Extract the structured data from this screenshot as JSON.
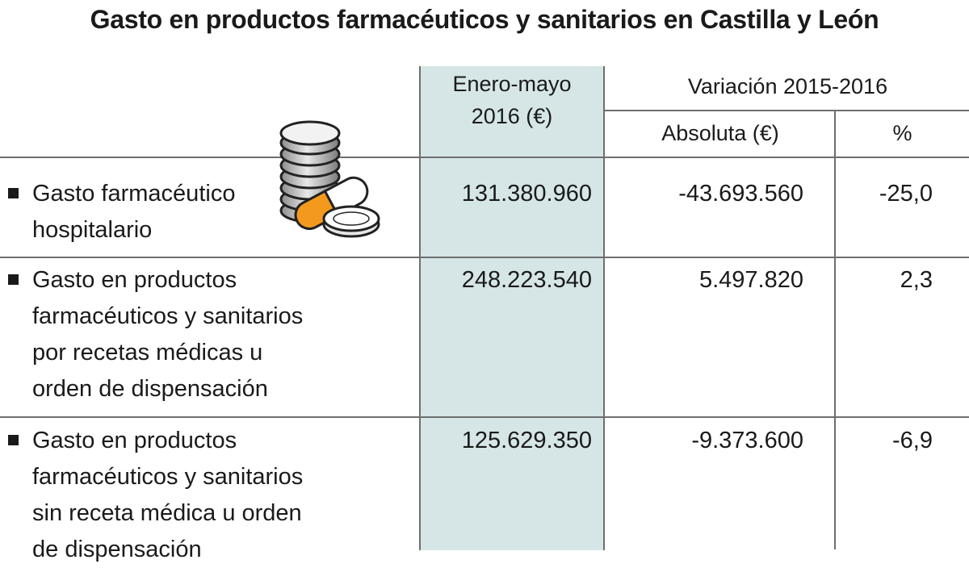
{
  "title": "Gasto en productos farmacéuticos y sanitarios en Castilla y León",
  "columns": {
    "period": [
      "Enero-mayo",
      "2016 (€)"
    ],
    "variation_group": "Variación 2015-2016",
    "absolute": "Absoluta (€)",
    "percent": "%"
  },
  "rows": [
    {
      "label_lines": [
        "Gasto farmacéutico",
        "hospitalario"
      ],
      "value": "131.380.960",
      "absolute": "-43.693.560",
      "percent": "-25,0"
    },
    {
      "label_lines": [
        "Gasto en productos",
        "farmacéuticos y sanitarios",
        "por recetas médicas u",
        "orden de dispensación"
      ],
      "value": "248.223.540",
      "absolute": "5.497.820",
      "percent": "2,3"
    },
    {
      "label_lines": [
        "Gasto en productos",
        "farmacéuticos y sanitarios",
        "sin receta médica u orden",
        "de dispensación"
      ],
      "value": "125.629.350",
      "absolute": "-9.373.600",
      "percent": "-6,9"
    }
  ],
  "icons": {
    "illustration": "coins-and-pills-icon",
    "row_marker": "square-bullet-icon"
  },
  "colors": {
    "highlight_column": "#d6e6e7",
    "pill_orange": "#f39a1e",
    "rule": "#6e6e6e"
  }
}
